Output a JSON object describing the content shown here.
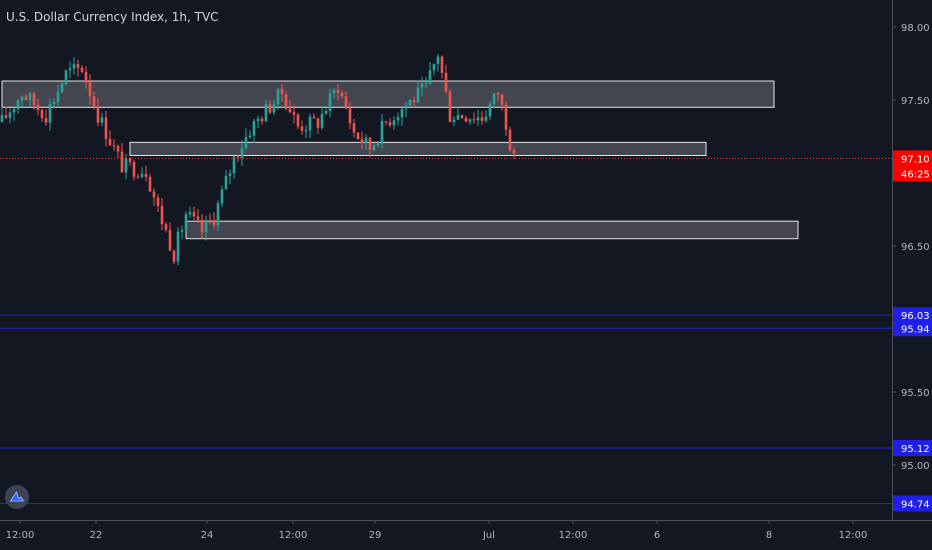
{
  "title": "U.S. Dollar Currency Index, 1h, TVC",
  "colors": {
    "background": "#131722",
    "axis_line": "#4a4e59",
    "text": "#d1d4dc",
    "candle_up": "#26a69a",
    "candle_down": "#ef5350",
    "zone_fill": "#4e4f57",
    "zone_border": "#e6e6e6",
    "price_line": "#e53935",
    "level_line": "#1e24d0",
    "level_badge": "#1f1fe8",
    "price_badge": "#ff0000"
  },
  "chart_data": {
    "type": "candlestick",
    "title": "U.S. Dollar Currency Index, 1h, TVC",
    "ylim": [
      94.6,
      98.15
    ],
    "y_ticks": [
      "98.00",
      "97.50",
      "96.50",
      "95.50",
      "95.00"
    ],
    "x_ticks": [
      "12:00",
      "22",
      "24",
      "12:00",
      "29",
      "Jul",
      "12:00",
      "6",
      "8",
      "12:00"
    ],
    "grid": false,
    "current_price": {
      "value": 97.1,
      "label": "97.10",
      "countdown": "46:25"
    },
    "horizontal_levels": [
      {
        "value": 96.03,
        "label": "96.03"
      },
      {
        "value": 95.94,
        "label": "95.94"
      },
      {
        "value": 95.12,
        "label": "95.12"
      },
      {
        "value": 94.74,
        "label": "94.74"
      }
    ],
    "zones": [
      {
        "x_start": 0,
        "x_end": 193,
        "y_low": 97.45,
        "y_high": 97.63
      },
      {
        "x_start": 32,
        "x_end": 176,
        "y_low": 97.12,
        "y_high": 97.21
      },
      {
        "x_start": 46,
        "x_end": 199,
        "y_low": 96.55,
        "y_high": 96.67
      }
    ],
    "candle_segments": [
      [
        0,
        97.35
      ],
      [
        5,
        97.55
      ],
      [
        11,
        97.4
      ],
      [
        16,
        97.68
      ],
      [
        20,
        97.72
      ],
      [
        24,
        97.4
      ],
      [
        30,
        97.05
      ],
      [
        36,
        97.02
      ],
      [
        39,
        96.75
      ],
      [
        43,
        96.45
      ],
      [
        46,
        96.72
      ],
      [
        50,
        96.6
      ],
      [
        53,
        96.7
      ],
      [
        58,
        97.1
      ],
      [
        62,
        97.3
      ],
      [
        66,
        97.43
      ],
      [
        70,
        97.55
      ],
      [
        74,
        97.32
      ],
      [
        79,
        97.35
      ],
      [
        84,
        97.6
      ],
      [
        88,
        97.28
      ],
      [
        92,
        97.17
      ],
      [
        96,
        97.35
      ],
      [
        101,
        97.47
      ],
      [
        106,
        97.58
      ],
      [
        109,
        97.82
      ],
      [
        112,
        97.4
      ],
      [
        116,
        97.4
      ],
      [
        120,
        97.38
      ],
      [
        124,
        97.55
      ],
      [
        126,
        97.35
      ],
      [
        128,
        97.08
      ]
    ]
  }
}
